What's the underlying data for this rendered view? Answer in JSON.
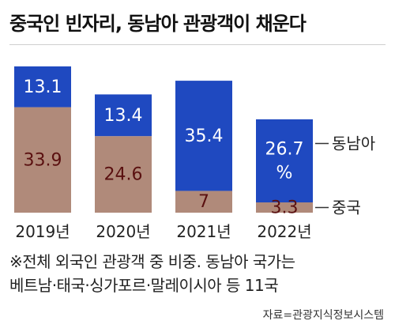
{
  "title": "중국인 빈자리, 동남아 관광객이 채운다",
  "chart_data": {
    "type": "bar",
    "stacked": true,
    "normalized": true,
    "categories": [
      "2019년",
      "2020년",
      "2021년",
      "2022년"
    ],
    "series": [
      {
        "name": "중국",
        "values": [
          33.9,
          24.6,
          7,
          3.3
        ],
        "labels": [
          "33.9",
          "24.6",
          "7",
          "3.3"
        ],
        "color": "#b08a7a",
        "label_color": "#5a1010"
      },
      {
        "name": "동남아",
        "values": [
          13.1,
          13.4,
          35.4,
          26.7
        ],
        "labels": [
          "13.1",
          "13.4",
          "35.4",
          "26.7\n%"
        ],
        "color": "#1f49c0",
        "label_color": "#ffffff"
      }
    ],
    "legend_placement": "right"
  },
  "footnote": {
    "line1": "※전체 외국인 관광객 중 비중. 동남아 국가는",
    "line2": "베트남·태국·싱가포르·말레이시아 등 11국"
  },
  "source": "자료=관광지식정보시스템"
}
